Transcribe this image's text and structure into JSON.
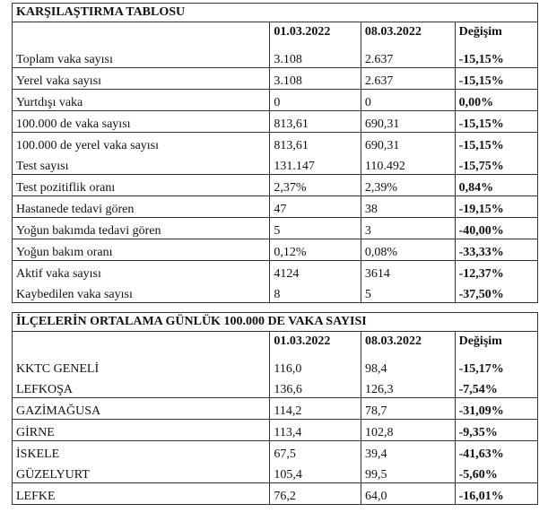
{
  "table1": {
    "title": "KARŞILAŞTIRMA TABLOSU",
    "headers": [
      "",
      "01.03.2022",
      "08.03.2022",
      "Değişim"
    ],
    "rows": [
      [
        "Toplam vaka sayısı",
        "3.108",
        "2.637",
        "-15,15%"
      ],
      [
        "Yerel vaka sayısı",
        "3.108",
        "2.637",
        "-15,15%"
      ],
      [
        "Yurtdışı vaka",
        "0",
        "0",
        "0,00%"
      ],
      [
        "100.000 de vaka sayısı",
        "813,61",
        "690,31",
        "-15,15%"
      ],
      [
        "100.000 de yerel vaka sayısı",
        "813,61",
        "690,31",
        "-15,15%"
      ],
      [
        "Test sayısı",
        "131.147",
        "110.492",
        "-15,75%"
      ],
      [
        "Test pozitiflik oranı",
        "2,37%",
        "2,39%",
        "0,84%"
      ],
      [
        "Hastanede tedavi gören",
        "47",
        "38",
        "-19,15%"
      ],
      [
        "Yoğun bakımda tedavi gören",
        "5",
        "3",
        "-40,00%"
      ],
      [
        "Yoğun bakım oranı",
        "0,12%",
        "0,08%",
        "-33,33%"
      ],
      [
        "Aktif vaka sayısı",
        "4124",
        "3614",
        "-12,37%"
      ],
      [
        "Kaybedilen vaka sayısı",
        "8",
        "5",
        "-37,50%"
      ]
    ]
  },
  "table2": {
    "title": "İLÇELERİN ORTALAMA GÜNLÜK 100.000 DE VAKA SAYISI",
    "headers": [
      "",
      "01.03.2022",
      "08.03.2022",
      "Değişim"
    ],
    "rows": [
      [
        "KKTC GENELİ",
        "116,0",
        "98,4",
        "-15,17%"
      ],
      [
        "LEFKOŞA",
        "136,6",
        "126,3",
        "-7,54%"
      ],
      [
        "GAZİMAĞUSA",
        "114,2",
        "78,7",
        "-31,09%"
      ],
      [
        "GİRNE",
        "113,4",
        "102,8",
        "-9,35%"
      ],
      [
        "İSKELE",
        "67,5",
        "39,4",
        "-41,63%"
      ],
      [
        "GÜZELYURT",
        "105,4",
        "99,5",
        "-5,60%"
      ],
      [
        "LEFKE",
        "76,2",
        "64,0",
        "-16,01%"
      ]
    ]
  }
}
